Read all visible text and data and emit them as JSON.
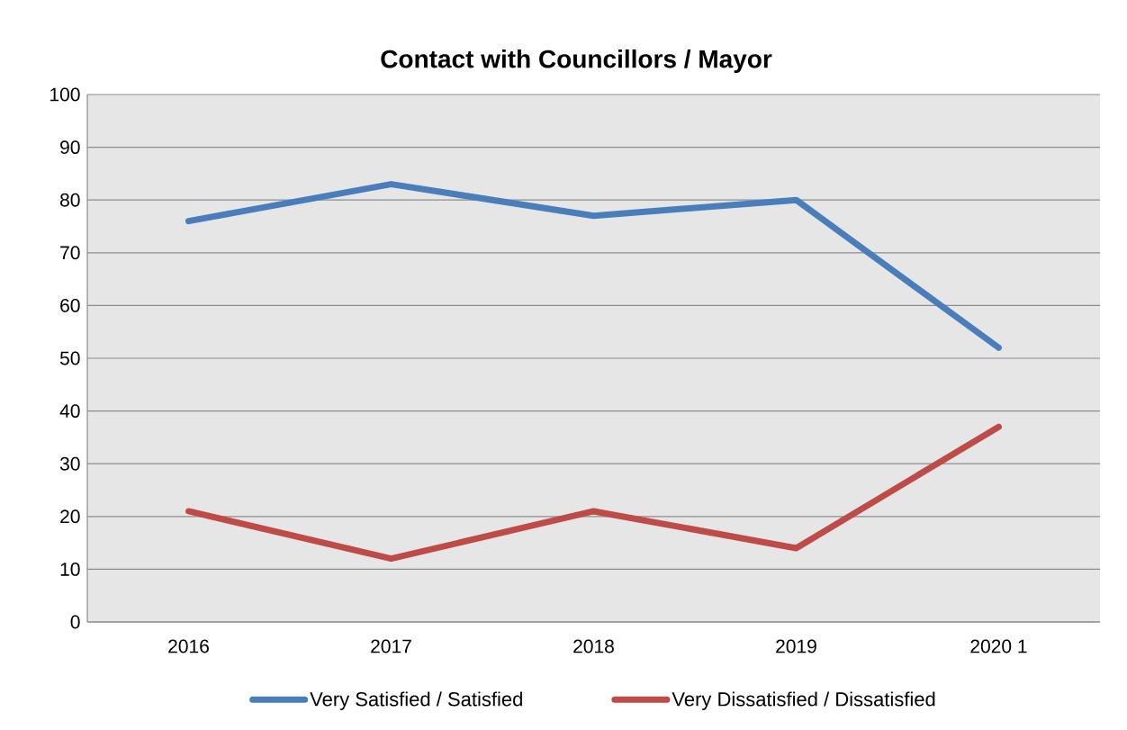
{
  "chart_data": {
    "type": "line",
    "title": "Contact with Councillors / Mayor",
    "categories": [
      "2016",
      "2017",
      "2018",
      "2019",
      "2020 1"
    ],
    "series": [
      {
        "name": "Very Satisfied / Satisfied",
        "color": "#4a7ebb",
        "values": [
          76,
          83,
          77,
          80,
          52
        ]
      },
      {
        "name": "Very Dissatisfied / Dissatisfied",
        "color": "#be4b48",
        "values": [
          21,
          12,
          21,
          14,
          37
        ]
      }
    ],
    "ylim": [
      0,
      100
    ],
    "yticks": [
      0,
      10,
      20,
      30,
      40,
      50,
      60,
      70,
      80,
      90,
      100
    ],
    "grid": "y",
    "legend": "bottom"
  }
}
